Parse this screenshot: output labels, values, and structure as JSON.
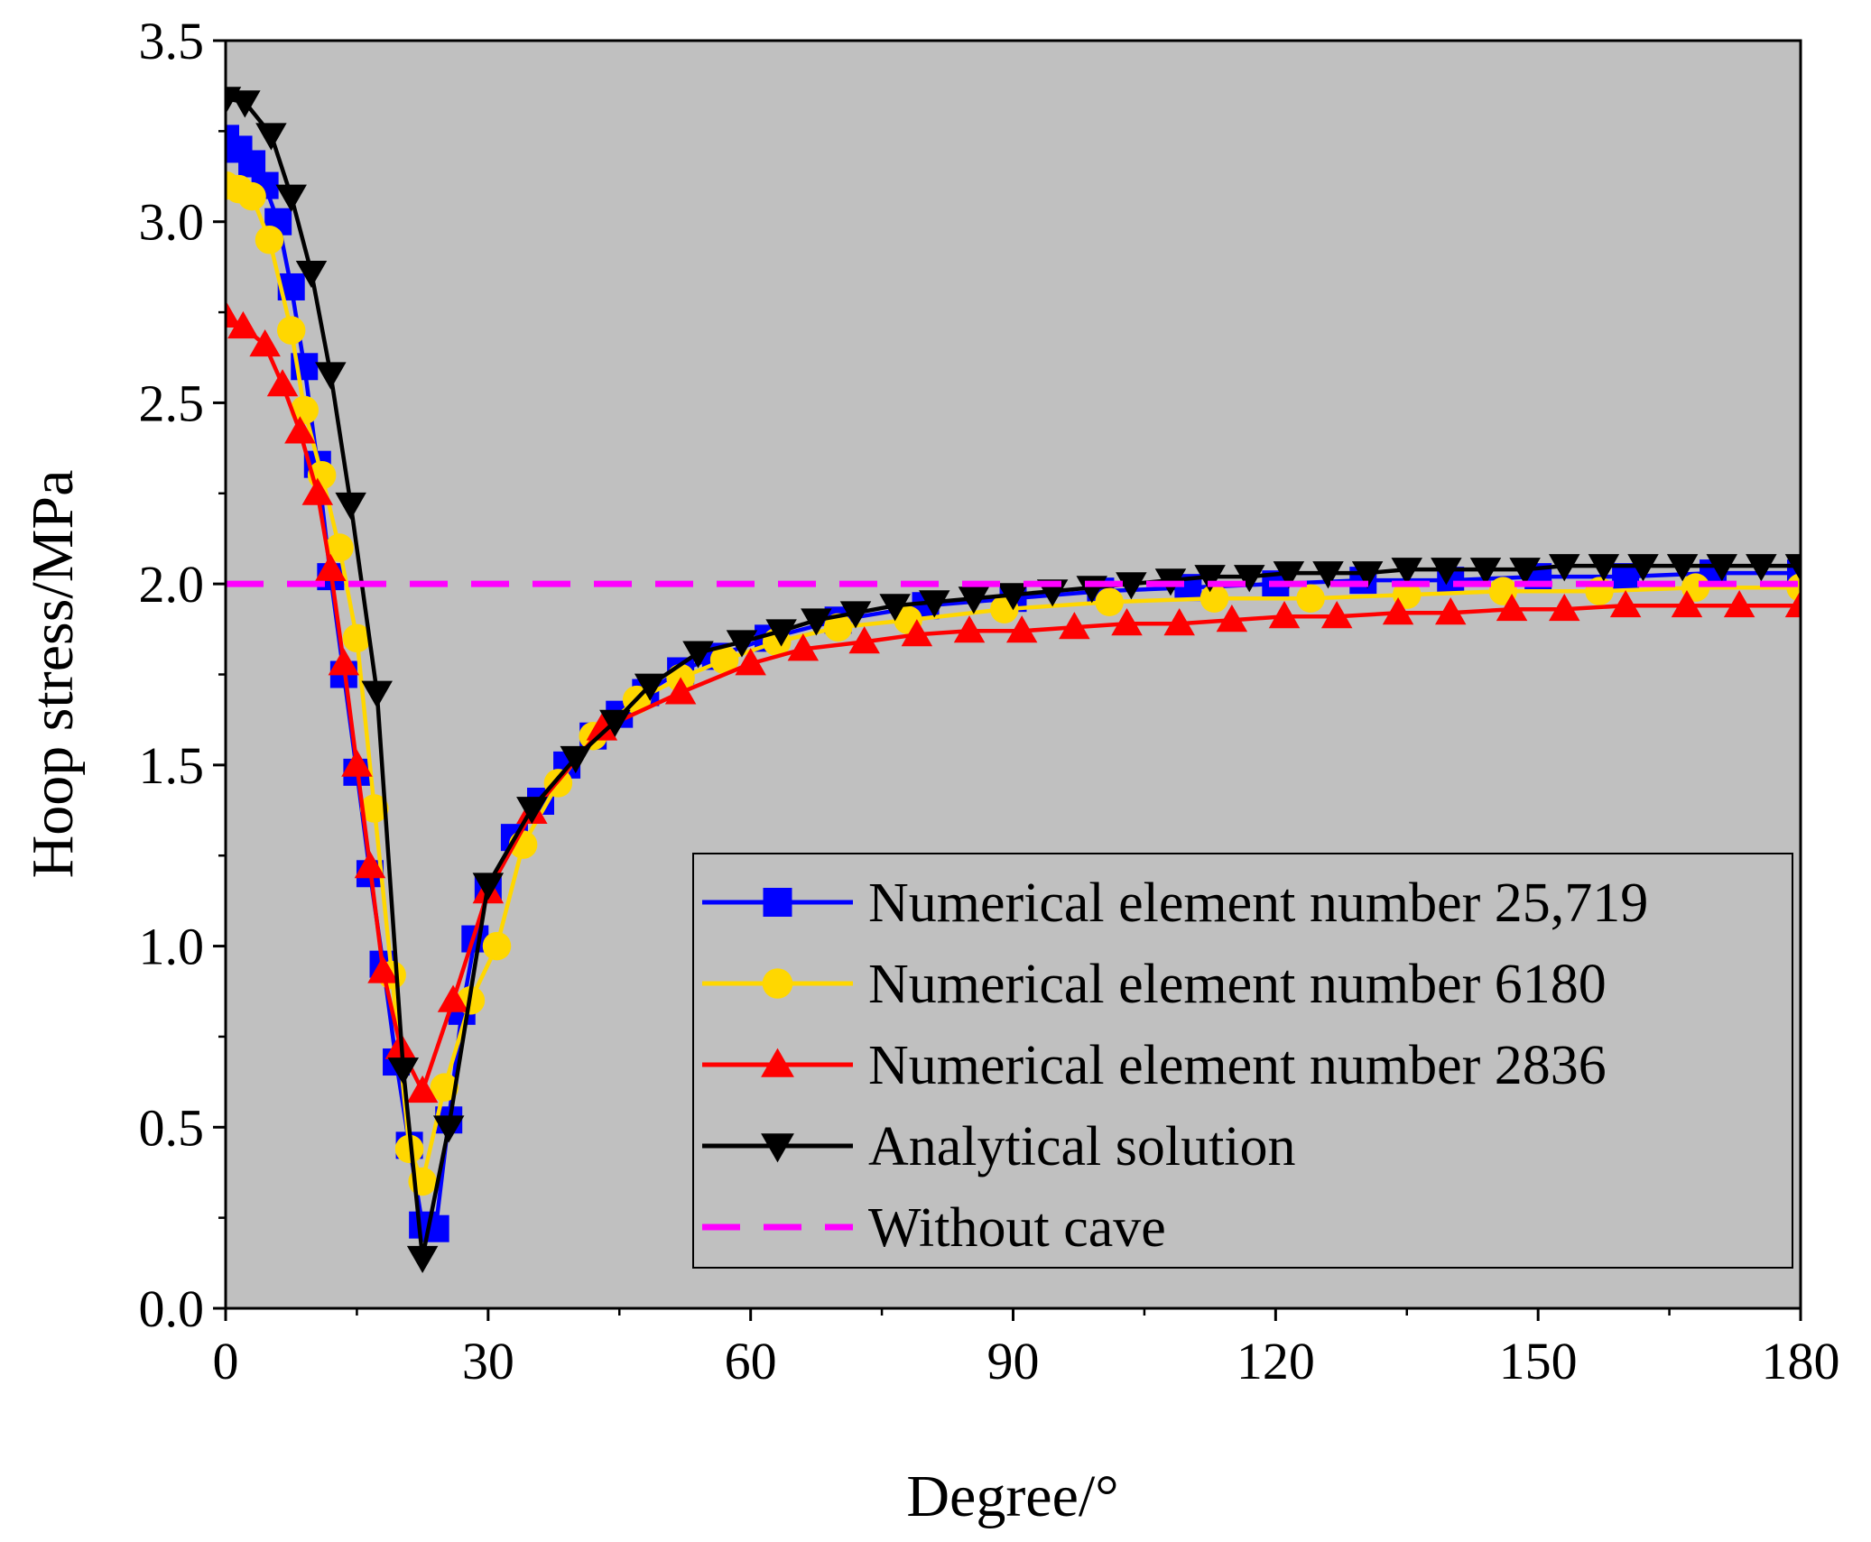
{
  "chart_data": {
    "type": "line",
    "title": "",
    "xlabel": "Degree/°",
    "ylabel": "Hoop stress/MPa",
    "xlim": [
      0,
      180
    ],
    "ylim": [
      0,
      3.5
    ],
    "xticks": [
      0,
      30,
      60,
      90,
      120,
      150,
      180
    ],
    "xtick_labels": [
      "0",
      "30",
      "60",
      "90",
      "120",
      "150",
      "180"
    ],
    "yticks": [
      0,
      0.5,
      1.0,
      1.5,
      2.0,
      2.5,
      3.0,
      3.5
    ],
    "ytick_labels": [
      "0.0",
      "0.5",
      "1.0",
      "1.5",
      "2.0",
      "2.5",
      "3.0",
      "3.5"
    ],
    "grid": false,
    "legend_position": "bottom-right",
    "colors": {
      "plot_background": "#c0c0c0",
      "axes": "#000000"
    },
    "series": [
      {
        "name": "Numerical element number 25,719",
        "color": "#0000ff",
        "marker": "square",
        "x": [
          0,
          1.5,
          3,
          4.5,
          6,
          7.5,
          9,
          10.5,
          12,
          13.5,
          15,
          16.5,
          18,
          19.5,
          21,
          22.5,
          24,
          25.5,
          27,
          28.5,
          30,
          33,
          36,
          39,
          42,
          45,
          48,
          52,
          56,
          62,
          70,
          80,
          90,
          100,
          110,
          120,
          130,
          140,
          150,
          160,
          170,
          180
        ],
        "y": [
          3.23,
          3.2,
          3.16,
          3.1,
          3.0,
          2.82,
          2.6,
          2.33,
          2.02,
          1.75,
          1.48,
          1.2,
          0.95,
          0.68,
          0.45,
          0.23,
          0.22,
          0.52,
          0.82,
          1.02,
          1.16,
          1.3,
          1.4,
          1.5,
          1.58,
          1.64,
          1.7,
          1.76,
          1.8,
          1.85,
          1.9,
          1.94,
          1.96,
          1.98,
          1.99,
          2.0,
          2.01,
          2.01,
          2.02,
          2.02,
          2.03,
          2.03
        ]
      },
      {
        "name": "Numerical element number 6180",
        "color": "#ffd700",
        "marker": "circle",
        "x": [
          0,
          1.5,
          3,
          5,
          7.5,
          9,
          11,
          13,
          15,
          17,
          19,
          21,
          22.5,
          25,
          28,
          31,
          34,
          38,
          42,
          47,
          52,
          57,
          63,
          70,
          78,
          89,
          101,
          113,
          124,
          135,
          146,
          157,
          168,
          180
        ],
        "y": [
          3.1,
          3.09,
          3.07,
          2.95,
          2.7,
          2.48,
          2.3,
          2.1,
          1.85,
          1.38,
          0.92,
          0.44,
          0.35,
          0.61,
          0.85,
          1.0,
          1.28,
          1.45,
          1.58,
          1.68,
          1.74,
          1.79,
          1.84,
          1.88,
          1.9,
          1.93,
          1.95,
          1.96,
          1.96,
          1.97,
          1.98,
          1.98,
          1.99,
          1.99
        ]
      },
      {
        "name": "Numerical element number 2836",
        "color": "#ff0000",
        "marker": "triangle-up",
        "x": [
          0,
          2,
          4.5,
          6.5,
          8.5,
          10.5,
          12,
          13.5,
          15,
          16.5,
          18,
          20,
          22.5,
          26,
          30,
          35,
          43,
          52,
          60,
          66,
          73,
          79,
          85,
          91,
          97,
          103,
          109,
          115,
          121,
          127,
          134,
          140,
          147,
          153,
          160,
          167,
          173,
          180
        ],
        "y": [
          2.74,
          2.71,
          2.66,
          2.55,
          2.42,
          2.25,
          2.04,
          1.78,
          1.5,
          1.22,
          0.93,
          0.72,
          0.6,
          0.85,
          1.15,
          1.37,
          1.6,
          1.7,
          1.78,
          1.82,
          1.84,
          1.86,
          1.87,
          1.87,
          1.88,
          1.89,
          1.89,
          1.9,
          1.91,
          1.91,
          1.92,
          1.92,
          1.93,
          1.93,
          1.94,
          1.94,
          1.94,
          1.94
        ]
      },
      {
        "name": "Analytical solution",
        "color": "#000000",
        "marker": "triangle-down",
        "x": [
          0,
          2.2,
          5.2,
          7.5,
          9.8,
          12,
          14.3,
          17.3,
          20.3,
          22.5,
          25.5,
          30,
          35,
          40,
          44.5,
          48.5,
          54,
          59,
          63.5,
          67.5,
          72,
          76.5,
          81,
          85.5,
          90,
          94.5,
          99,
          103.5,
          108,
          112.5,
          117,
          121.5,
          126,
          130.5,
          135,
          139.5,
          144,
          148.5,
          153,
          157.5,
          162,
          166.5,
          171,
          175.5,
          180
        ],
        "y": [
          3.34,
          3.33,
          3.24,
          3.07,
          2.86,
          2.58,
          2.22,
          1.7,
          0.66,
          0.14,
          0.5,
          1.17,
          1.38,
          1.52,
          1.62,
          1.72,
          1.81,
          1.84,
          1.87,
          1.9,
          1.92,
          1.94,
          1.95,
          1.96,
          1.97,
          1.98,
          1.99,
          2.0,
          2.01,
          2.02,
          2.02,
          2.03,
          2.03,
          2.03,
          2.04,
          2.04,
          2.04,
          2.04,
          2.05,
          2.05,
          2.05,
          2.05,
          2.05,
          2.05,
          2.05
        ]
      },
      {
        "name": "Without cave",
        "color": "#ff00ff",
        "marker": "none",
        "dash": true,
        "x": [
          0,
          180
        ],
        "y": [
          2.0,
          2.0
        ]
      }
    ]
  }
}
